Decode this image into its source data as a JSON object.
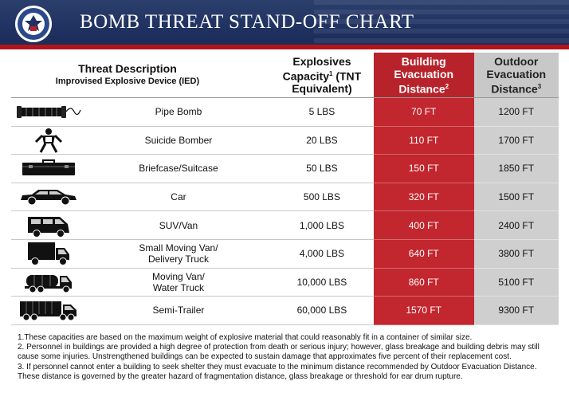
{
  "header": {
    "title": "BOMB THREAT STAND-OFF CHART",
    "seal_icon": "dhs-seal-icon"
  },
  "table": {
    "headers": {
      "threat_description": "Threat Description",
      "threat_subtitle": "Improvised Explosive Device (IED)",
      "capacity_line1": "Explosives",
      "capacity_line2": "Capacity",
      "capacity_sup": "1",
      "capacity_line2b": " (TNT",
      "capacity_line3": "Equivalent)",
      "building_line1": "Building",
      "building_line2": "Evacuation",
      "building_line3": "Distance",
      "building_sup": "2",
      "outdoor_line1": "Outdoor",
      "outdoor_line2": "Evacuation",
      "outdoor_line3": "Distance",
      "outdoor_sup": "3"
    },
    "rows": [
      {
        "icon": "pipe-bomb-icon",
        "description": "Pipe Bomb",
        "description2": "",
        "capacity": "5 LBS",
        "building": "70 FT",
        "outdoor": "1200 FT"
      },
      {
        "icon": "suicide-bomber-icon",
        "description": "Suicide Bomber",
        "description2": "",
        "capacity": "20 LBS",
        "building": "110 FT",
        "outdoor": "1700 FT"
      },
      {
        "icon": "briefcase-icon",
        "description": "Briefcase/Suitcase",
        "description2": "",
        "capacity": "50 LBS",
        "building": "150 FT",
        "outdoor": "1850 FT"
      },
      {
        "icon": "car-icon",
        "description": "Car",
        "description2": "",
        "capacity": "500 LBS",
        "building": "320 FT",
        "outdoor": "1500 FT"
      },
      {
        "icon": "suv-van-icon",
        "description": "SUV/Van",
        "description2": "",
        "capacity": "1,000 LBS",
        "building": "400 FT",
        "outdoor": "2400 FT"
      },
      {
        "icon": "delivery-truck-icon",
        "description": "Small Moving Van/",
        "description2": "Delivery Truck",
        "capacity": "4,000 LBS",
        "building": "640 FT",
        "outdoor": "3800 FT"
      },
      {
        "icon": "water-truck-icon",
        "description": "Moving Van/",
        "description2": "Water Truck",
        "capacity": "10,000 LBS",
        "building": "860 FT",
        "outdoor": "5100 FT"
      },
      {
        "icon": "semi-trailer-icon",
        "description": "Semi-Trailer",
        "description2": "",
        "capacity": "60,000 LBS",
        "building": "1570 FT",
        "outdoor": "9300 FT"
      }
    ]
  },
  "notes": [
    "1.These capacities are based on the maximum weight of explosive material that could reasonably fit in a container of similar size.",
    "2. Personnel in buildings are provided a high degree of protection from death or serious injury; however,  glass breakage and building debris may still cause some injuries. Unstrengthened buildings can be expected to sustain damage that approximates five percent of their replacement cost.",
    "3.  If personnel cannot enter a building to seek shelter they must evacuate to the minimum distance recommended by Outdoor Evacuation Distance. These distance is governed by the greater hazard of fragmentation distance, glass breakage or threshold for ear drum rupture."
  ],
  "colors": {
    "header_bg": "#1f3160",
    "accent_red": "#b8232b",
    "outdoor_gray": "#c8c8c8"
  }
}
